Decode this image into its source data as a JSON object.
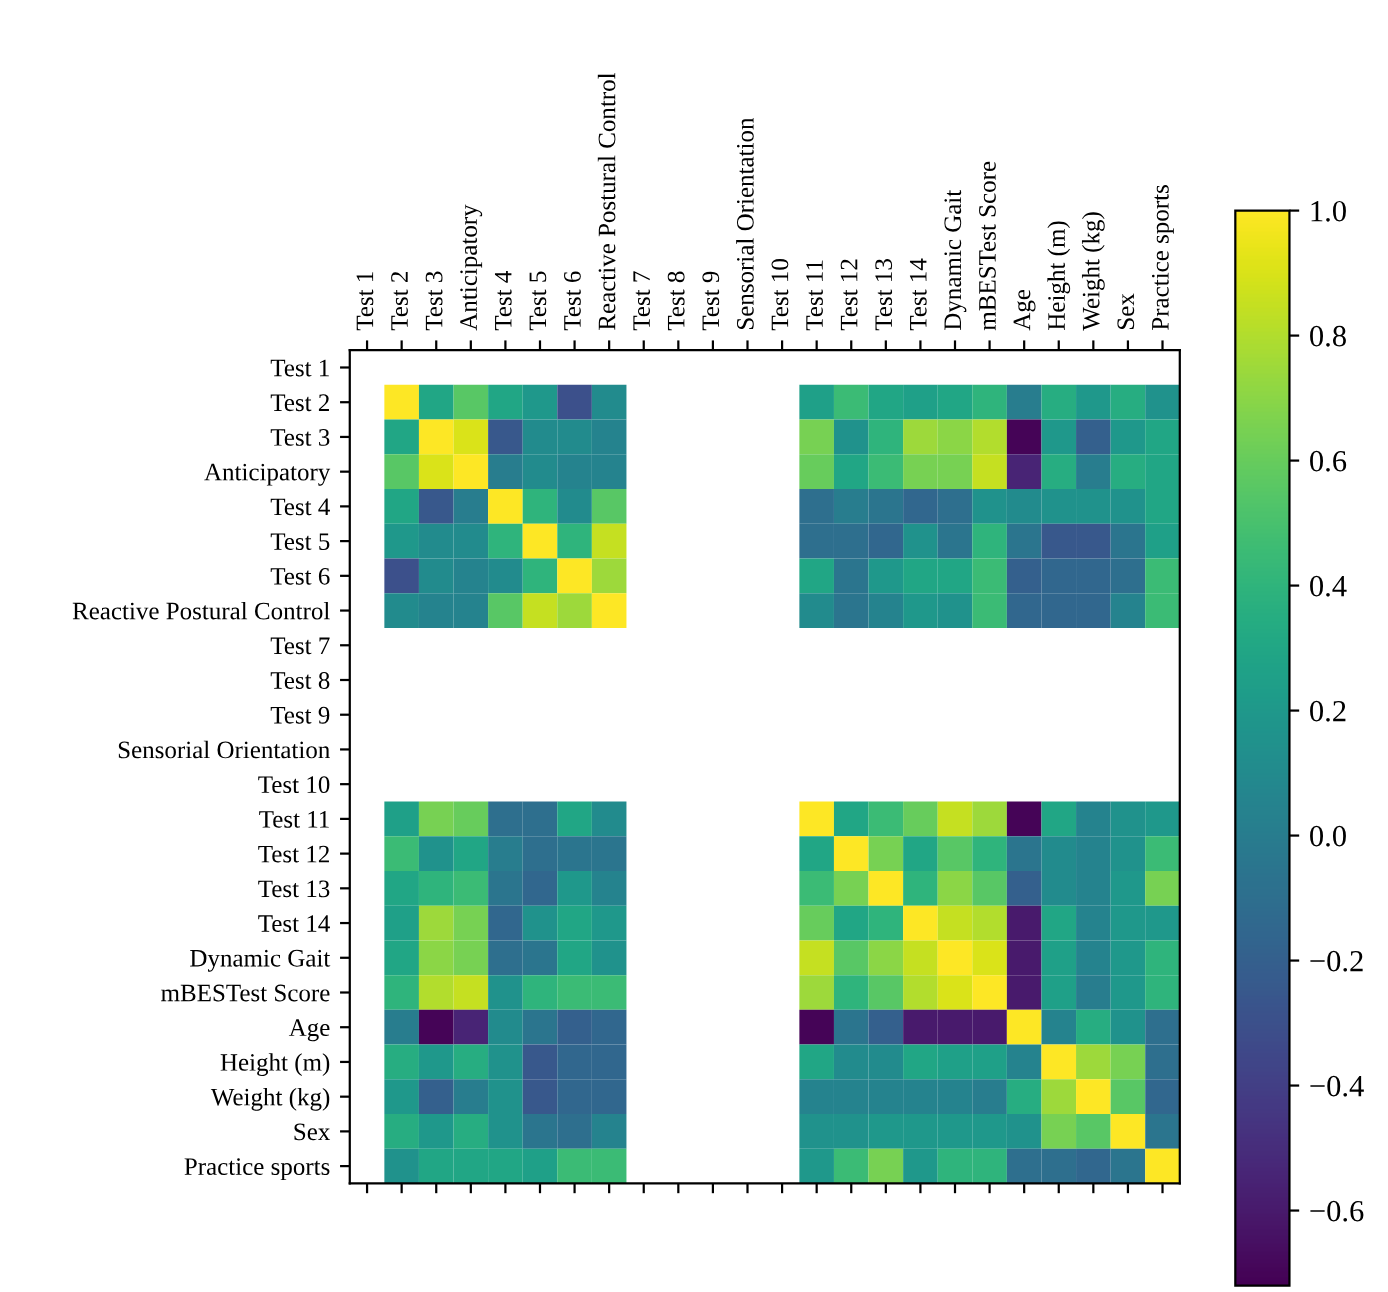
{
  "chart_data": {
    "type": "heatmap",
    "categories": [
      "Test 1",
      "Test 2",
      "Test 3",
      "Anticipatory",
      "Test 4",
      "Test 5",
      "Test 6",
      "Reactive Postural Control",
      "Test 7",
      "Test 8",
      "Test 9",
      "Sensorial Orientation",
      "Test 10",
      "Test 11",
      "Test 12",
      "Test 13",
      "Test 14",
      "Dynamic Gait",
      "mBESTest Score",
      "Age",
      "Height (m)",
      "Weight (kg)",
      "Sex",
      "Practice sports"
    ],
    "y_categories": [
      "Test 1",
      "Test 2",
      "Test 3",
      "Anticipatory",
      "Test 4",
      "Test 5",
      "Test 6",
      "Reactive Postural Control",
      "Test 7",
      "Test 8",
      "Test 9",
      "Sensorial Orientation",
      "Test 10",
      "Test 11",
      "Test 12",
      "Test 13",
      "Test 14",
      "Dynamic Gait",
      "mBESTest Score",
      "Age",
      "Height (m)",
      "Weight (kg)",
      "Sex",
      "Practice sports"
    ],
    "cells": [
      [
        null,
        null,
        null,
        null,
        null,
        null,
        null,
        null,
        null,
        null,
        null,
        null,
        null,
        null,
        null,
        null,
        null,
        null,
        null,
        null,
        null,
        null,
        null,
        null
      ],
      [
        null,
        1,
        0.3,
        0.55,
        0.3,
        0.2,
        -0.3,
        0.1,
        null,
        null,
        null,
        null,
        null,
        0.25,
        0.45,
        0.3,
        0.25,
        0.3,
        0.4,
        0,
        0.35,
        0.2,
        0.35,
        0.15
      ],
      [
        null,
        0.3,
        1,
        0.9,
        -0.25,
        0.1,
        0.1,
        0.05,
        null,
        null,
        null,
        null,
        null,
        0.65,
        0.15,
        0.4,
        0.75,
        0.7,
        0.8,
        -0.7,
        0.2,
        -0.2,
        0.2,
        0.3
      ],
      [
        null,
        0.55,
        0.9,
        1,
        0,
        0.1,
        0.05,
        0.05,
        null,
        null,
        null,
        null,
        null,
        0.6,
        0.3,
        0.45,
        0.65,
        0.65,
        0.85,
        -0.55,
        0.35,
        0,
        0.35,
        0.3
      ],
      [
        null,
        0.3,
        -0.25,
        0,
        1,
        0.4,
        0.1,
        0.55,
        null,
        null,
        null,
        null,
        null,
        -0.1,
        0,
        -0.05,
        -0.15,
        -0.1,
        0.15,
        0.1,
        0.15,
        0.15,
        0.15,
        0.3
      ],
      [
        null,
        0.2,
        0.1,
        0.1,
        0.4,
        1,
        0.4,
        0.85,
        null,
        null,
        null,
        null,
        null,
        -0.1,
        -0.1,
        -0.15,
        0.15,
        -0.05,
        0.4,
        -0.05,
        -0.25,
        -0.25,
        -0.05,
        0.25
      ],
      [
        null,
        -0.3,
        0.1,
        0.05,
        0.1,
        0.4,
        1,
        0.75,
        null,
        null,
        null,
        null,
        null,
        0.3,
        -0.05,
        0.2,
        0.3,
        0.3,
        0.45,
        -0.2,
        -0.15,
        -0.15,
        -0.1,
        0.45
      ],
      [
        null,
        0.1,
        0.05,
        0.05,
        0.55,
        0.85,
        0.75,
        1,
        null,
        null,
        null,
        null,
        null,
        0.1,
        -0.05,
        0.05,
        0.2,
        0.15,
        0.45,
        -0.15,
        -0.15,
        -0.15,
        0.05,
        0.45
      ],
      [
        null,
        null,
        null,
        null,
        null,
        null,
        null,
        null,
        null,
        null,
        null,
        null,
        null,
        null,
        null,
        null,
        null,
        null,
        null,
        null,
        null,
        null,
        null,
        null
      ],
      [
        null,
        null,
        null,
        null,
        null,
        null,
        null,
        null,
        null,
        null,
        null,
        null,
        null,
        null,
        null,
        null,
        null,
        null,
        null,
        null,
        null,
        null,
        null,
        null
      ],
      [
        null,
        null,
        null,
        null,
        null,
        null,
        null,
        null,
        null,
        null,
        null,
        null,
        null,
        null,
        null,
        null,
        null,
        null,
        null,
        null,
        null,
        null,
        null,
        null
      ],
      [
        null,
        null,
        null,
        null,
        null,
        null,
        null,
        null,
        null,
        null,
        null,
        null,
        null,
        null,
        null,
        null,
        null,
        null,
        null,
        null,
        null,
        null,
        null,
        null
      ],
      [
        null,
        null,
        null,
        null,
        null,
        null,
        null,
        null,
        null,
        null,
        null,
        null,
        null,
        null,
        null,
        null,
        null,
        null,
        null,
        null,
        null,
        null,
        null,
        null
      ],
      [
        null,
        0.25,
        0.65,
        0.6,
        -0.1,
        -0.1,
        0.3,
        0.1,
        null,
        null,
        null,
        null,
        null,
        1,
        0.3,
        0.45,
        0.6,
        0.85,
        0.75,
        -0.7,
        0.3,
        0.05,
        0.15,
        0.2
      ],
      [
        null,
        0.45,
        0.15,
        0.3,
        0,
        -0.1,
        -0.05,
        -0.05,
        null,
        null,
        null,
        null,
        null,
        0.3,
        1,
        0.65,
        0.3,
        0.55,
        0.4,
        -0.05,
        0.1,
        0.05,
        0.15,
        0.45
      ],
      [
        null,
        0.3,
        0.4,
        0.45,
        -0.05,
        -0.15,
        0.2,
        0.05,
        null,
        null,
        null,
        null,
        null,
        0.45,
        0.65,
        1,
        0.4,
        0.7,
        0.55,
        -0.2,
        0.1,
        0.05,
        0.2,
        0.65
      ],
      [
        null,
        0.25,
        0.75,
        0.65,
        -0.15,
        0.15,
        0.3,
        0.2,
        null,
        null,
        null,
        null,
        null,
        0.6,
        0.3,
        0.4,
        1,
        0.85,
        0.8,
        -0.6,
        0.3,
        0.05,
        0.2,
        0.2
      ],
      [
        null,
        0.3,
        0.7,
        0.65,
        -0.1,
        -0.05,
        0.3,
        0.15,
        null,
        null,
        null,
        null,
        null,
        0.85,
        0.55,
        0.7,
        0.85,
        1,
        0.9,
        -0.6,
        0.25,
        0.05,
        0.2,
        0.4
      ],
      [
        null,
        0.4,
        0.8,
        0.85,
        0.15,
        0.4,
        0.45,
        0.45,
        null,
        null,
        null,
        null,
        null,
        0.75,
        0.4,
        0.55,
        0.8,
        0.9,
        1,
        -0.6,
        0.25,
        0,
        0.2,
        0.4
      ],
      [
        null,
        0,
        -0.7,
        -0.55,
        0.1,
        -0.05,
        -0.2,
        -0.15,
        null,
        null,
        null,
        null,
        null,
        -0.7,
        -0.05,
        -0.2,
        -0.6,
        -0.6,
        -0.6,
        1,
        0.05,
        0.35,
        0.15,
        -0.1
      ],
      [
        null,
        0.35,
        0.2,
        0.35,
        0.15,
        -0.25,
        -0.15,
        -0.15,
        null,
        null,
        null,
        null,
        null,
        0.3,
        0.1,
        0.1,
        0.3,
        0.25,
        0.25,
        0.05,
        1,
        0.75,
        0.65,
        -0.1
      ],
      [
        null,
        0.2,
        -0.2,
        0,
        0.15,
        -0.25,
        -0.15,
        -0.15,
        null,
        null,
        null,
        null,
        null,
        0.05,
        0.05,
        0.05,
        0.05,
        0.05,
        0,
        0.35,
        0.75,
        1,
        0.55,
        -0.15
      ],
      [
        null,
        0.35,
        0.2,
        0.35,
        0.15,
        -0.05,
        -0.1,
        0.05,
        null,
        null,
        null,
        null,
        null,
        0.15,
        0.15,
        0.2,
        0.2,
        0.2,
        0.2,
        0.15,
        0.65,
        0.55,
        1,
        -0.05
      ],
      [
        null,
        0.15,
        0.3,
        0.3,
        0.3,
        0.25,
        0.45,
        0.45,
        null,
        null,
        null,
        null,
        null,
        0.2,
        0.45,
        0.65,
        0.2,
        0.4,
        0.4,
        -0.1,
        -0.1,
        -0.15,
        -0.05,
        1
      ]
    ],
    "clim": [
      -0.72,
      1.0
    ],
    "cticks": [
      -0.6,
      -0.4,
      -0.2,
      {
        "value": 0,
        "label": "0.0"
      },
      0.2,
      0.4,
      0.6,
      0.8,
      {
        "value": 1,
        "label": "1.0"
      }
    ]
  }
}
